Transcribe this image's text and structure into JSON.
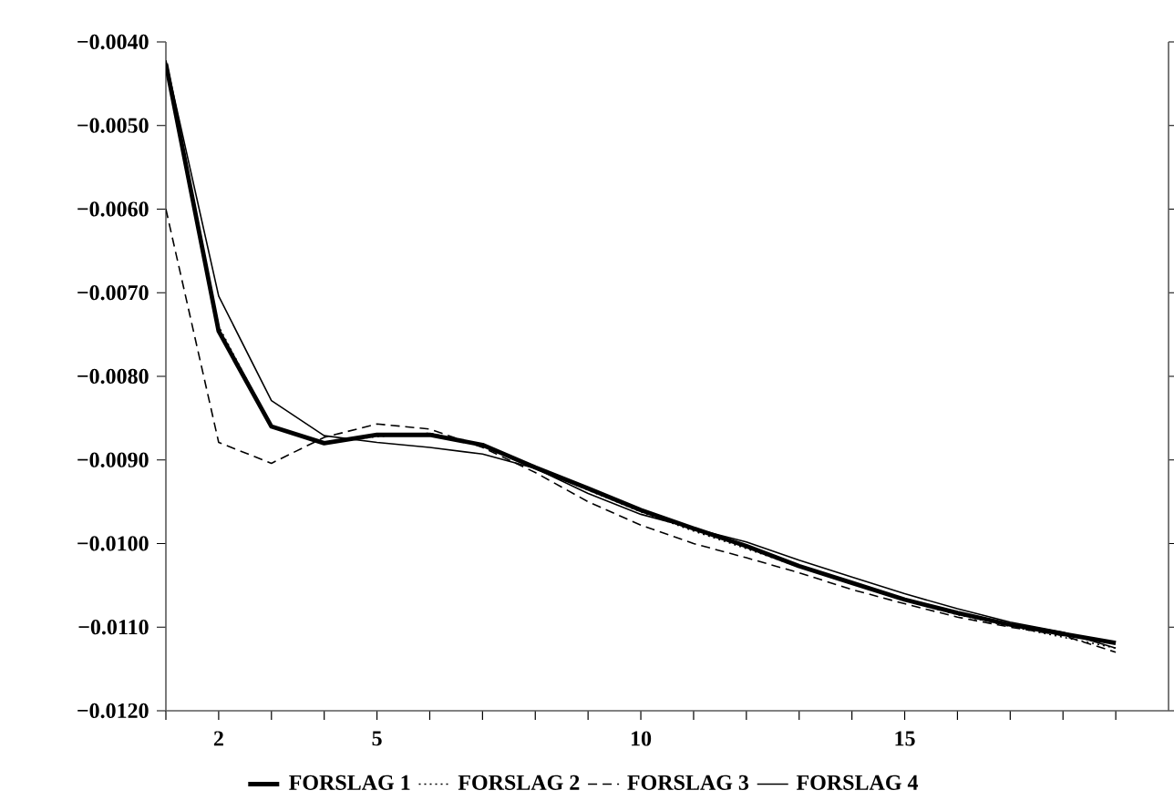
{
  "chart_data": {
    "type": "line",
    "x": [
      1,
      2,
      3,
      4,
      5,
      6,
      7,
      8,
      9,
      10,
      11,
      12,
      13,
      14,
      15,
      16,
      17,
      18,
      19
    ],
    "series": [
      {
        "name": "FORSLAG  1",
        "color": "#000000",
        "line_style": "solid",
        "values": [
          -0.00426,
          -0.00746,
          -0.0086,
          -0.0088,
          -0.0087,
          -0.0087,
          -0.00882,
          -0.00909,
          -0.00934,
          -0.0096,
          -0.00982,
          -0.01003,
          -0.01027,
          -0.01047,
          -0.01067,
          -0.01083,
          -0.01097,
          -0.01108,
          -0.01119
        ]
      },
      {
        "name": "FORSLAG  2",
        "color": "#000000",
        "line_style": "dotted",
        "values": [
          -0.0043,
          -0.0074,
          -0.0086,
          -0.0088,
          -0.00872,
          -0.00868,
          -0.00882,
          -0.0091,
          -0.00936,
          -0.00962,
          -0.00985,
          -0.01006,
          -0.01028,
          -0.01048,
          -0.01068,
          -0.01085,
          -0.01099,
          -0.01112,
          -0.01125
        ]
      },
      {
        "name": "FORSLAG  3",
        "color": "#000000",
        "line_style": "dashed",
        "values": [
          -0.006,
          -0.00879,
          -0.00904,
          -0.00873,
          -0.00857,
          -0.00863,
          -0.00885,
          -0.00915,
          -0.0095,
          -0.00978,
          -0.01,
          -0.01017,
          -0.01035,
          -0.01055,
          -0.01072,
          -0.01088,
          -0.011,
          -0.0111,
          -0.0113
        ]
      },
      {
        "name": "FORSLAG  4",
        "color": "#000000",
        "line_style": "solid",
        "values": [
          -0.00422,
          -0.00704,
          -0.00829,
          -0.00871,
          -0.00879,
          -0.00885,
          -0.00893,
          -0.0091,
          -0.0094,
          -0.00965,
          -0.00982,
          -0.00998,
          -0.0102,
          -0.0104,
          -0.0106,
          -0.01078,
          -0.01094,
          -0.01106,
          -0.01125
        ]
      }
    ],
    "xlim": [
      1,
      20
    ],
    "xticks": [
      {
        "value": 1,
        "label": null
      },
      2,
      {
        "value": 3,
        "label": null
      },
      {
        "value": 4,
        "label": null
      },
      5,
      {
        "value": 6,
        "label": null
      },
      {
        "value": 7,
        "label": null
      },
      {
        "value": 8,
        "label": null
      },
      {
        "value": 9,
        "label": null
      },
      10,
      {
        "value": 11,
        "label": null
      },
      {
        "value": 12,
        "label": null
      },
      {
        "value": 13,
        "label": null
      },
      {
        "value": 14,
        "label": null
      },
      15,
      {
        "value": 16,
        "label": null
      },
      {
        "value": 17,
        "label": null
      },
      {
        "value": 18,
        "label": null
      },
      {
        "value": 19,
        "label": null
      }
    ],
    "ylim": [
      -0.012,
      -0.004
    ],
    "yticks": [
      {
        "value": -0.012,
        "label": "−0.0120"
      },
      {
        "value": -0.011,
        "label": "−0.0110"
      },
      {
        "value": -0.01,
        "label": "−0.0100"
      },
      {
        "value": -0.009,
        "label": "−0.0090"
      },
      {
        "value": -0.008,
        "label": "−0.0080"
      },
      {
        "value": -0.007,
        "label": "−0.0070"
      },
      {
        "value": -0.006,
        "label": "−0.0060"
      },
      {
        "value": -0.005,
        "label": "−0.0050"
      },
      {
        "value": -0.004,
        "label": "−0.0040"
      }
    ],
    "grid": false,
    "legend": "bottom",
    "marker": "none"
  }
}
